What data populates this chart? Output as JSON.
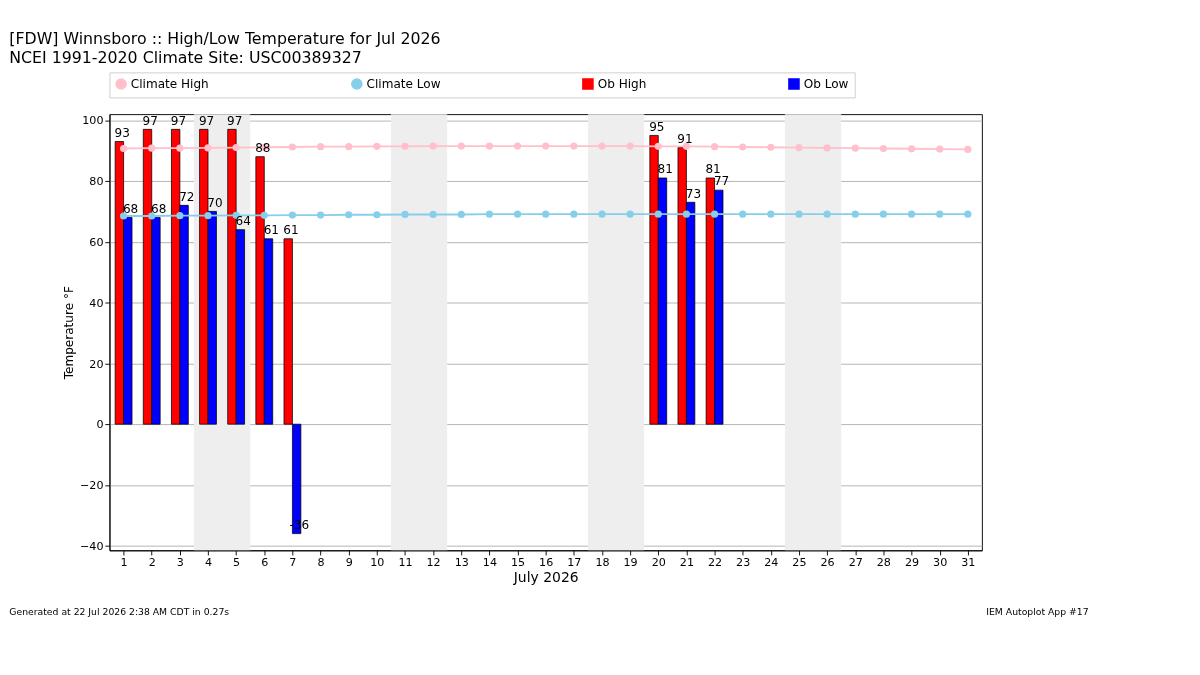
{
  "chart_data": {
    "type": "bar",
    "title": "[FDW] Winnsboro :: High/Low Temperature for Jul 2026",
    "subtitle": "NCEI 1991-2020 Climate Site: USC00389327",
    "xlabel": "July 2026",
    "ylabel": "Temperature °F",
    "x": [
      1,
      2,
      3,
      4,
      5,
      6,
      7,
      8,
      9,
      10,
      11,
      12,
      13,
      14,
      15,
      16,
      17,
      18,
      19,
      20,
      21,
      22,
      23,
      24,
      25,
      26,
      27,
      28,
      29,
      30,
      31
    ],
    "series": [
      {
        "name": "Climate High",
        "type": "line",
        "marker": "circle",
        "color": "#ffc0cb",
        "values": [
          90.7,
          90.8,
          90.8,
          90.9,
          91.0,
          91.1,
          91.2,
          91.3,
          91.3,
          91.4,
          91.4,
          91.5,
          91.5,
          91.5,
          91.5,
          91.5,
          91.5,
          91.5,
          91.5,
          91.4,
          91.4,
          91.3,
          91.2,
          91.1,
          91.0,
          90.9,
          90.8,
          90.7,
          90.6,
          90.5,
          90.4
        ]
      },
      {
        "name": "Climate Low",
        "type": "line",
        "marker": "circle",
        "color": "#87ceeb",
        "values": [
          68.5,
          68.5,
          68.6,
          68.6,
          68.7,
          68.7,
          68.8,
          68.8,
          68.9,
          68.9,
          69.0,
          69.0,
          69.0,
          69.1,
          69.1,
          69.1,
          69.1,
          69.1,
          69.1,
          69.1,
          69.1,
          69.1,
          69.1,
          69.1,
          69.1,
          69.1,
          69.1,
          69.1,
          69.1,
          69.1,
          69.1
        ]
      },
      {
        "name": "Ob High",
        "color": "#ff0000",
        "values": [
          93,
          97,
          97,
          97,
          97,
          88,
          61,
          null,
          null,
          null,
          null,
          null,
          null,
          null,
          null,
          null,
          null,
          null,
          null,
          95,
          91,
          81,
          null,
          null,
          null,
          null,
          null,
          null,
          null,
          null,
          null
        ],
        "value_labels": [
          "93",
          "97",
          "97",
          "97",
          "97",
          "88",
          "61",
          null,
          null,
          null,
          null,
          null,
          null,
          null,
          null,
          null,
          null,
          null,
          null,
          "95",
          "91",
          "81",
          null,
          null,
          null,
          null,
          null,
          null,
          null,
          null,
          null
        ]
      },
      {
        "name": "Ob Low",
        "color": "#0000ff",
        "values": [
          68,
          68,
          72,
          70,
          64,
          61,
          -36,
          null,
          null,
          null,
          null,
          null,
          null,
          null,
          null,
          null,
          null,
          null,
          null,
          81,
          73,
          77,
          null,
          null,
          null,
          null,
          null,
          null,
          null,
          null,
          null
        ],
        "value_labels": [
          "68",
          "68",
          "72",
          "70",
          "64",
          "61",
          "-36",
          null,
          null,
          null,
          null,
          null,
          null,
          null,
          null,
          null,
          null,
          null,
          null,
          "81",
          "73",
          "77",
          null,
          null,
          null,
          null,
          null,
          null,
          null,
          null,
          null
        ]
      }
    ],
    "xlim": [
      0.5,
      31.5
    ],
    "xticks": [
      1,
      2,
      3,
      4,
      5,
      6,
      7,
      8,
      9,
      10,
      11,
      12,
      13,
      14,
      15,
      16,
      17,
      18,
      19,
      20,
      21,
      22,
      23,
      24,
      25,
      26,
      27,
      28,
      29,
      30,
      31
    ],
    "ylim": [
      -41.5,
      102
    ],
    "yticks": [
      {
        "value": -40,
        "label": "−40"
      },
      {
        "value": -20,
        "label": "−20"
      },
      0,
      20,
      40,
      60,
      80,
      100
    ],
    "grid": "y",
    "legend": "top",
    "bands": [
      {
        "axis": "x",
        "from": 3.5,
        "to": 5.5,
        "color": "#eeeeee"
      },
      {
        "axis": "x",
        "from": 10.5,
        "to": 12.5,
        "color": "#eeeeee"
      },
      {
        "axis": "x",
        "from": 17.5,
        "to": 19.5,
        "color": "#eeeeee"
      },
      {
        "axis": "x",
        "from": 24.5,
        "to": 26.5,
        "color": "#eeeeee"
      }
    ],
    "annotations": [
      "Generated at 22 Jul 2026 2:38 AM CDT in 0.27s",
      "IEM Autoplot App #17"
    ]
  }
}
